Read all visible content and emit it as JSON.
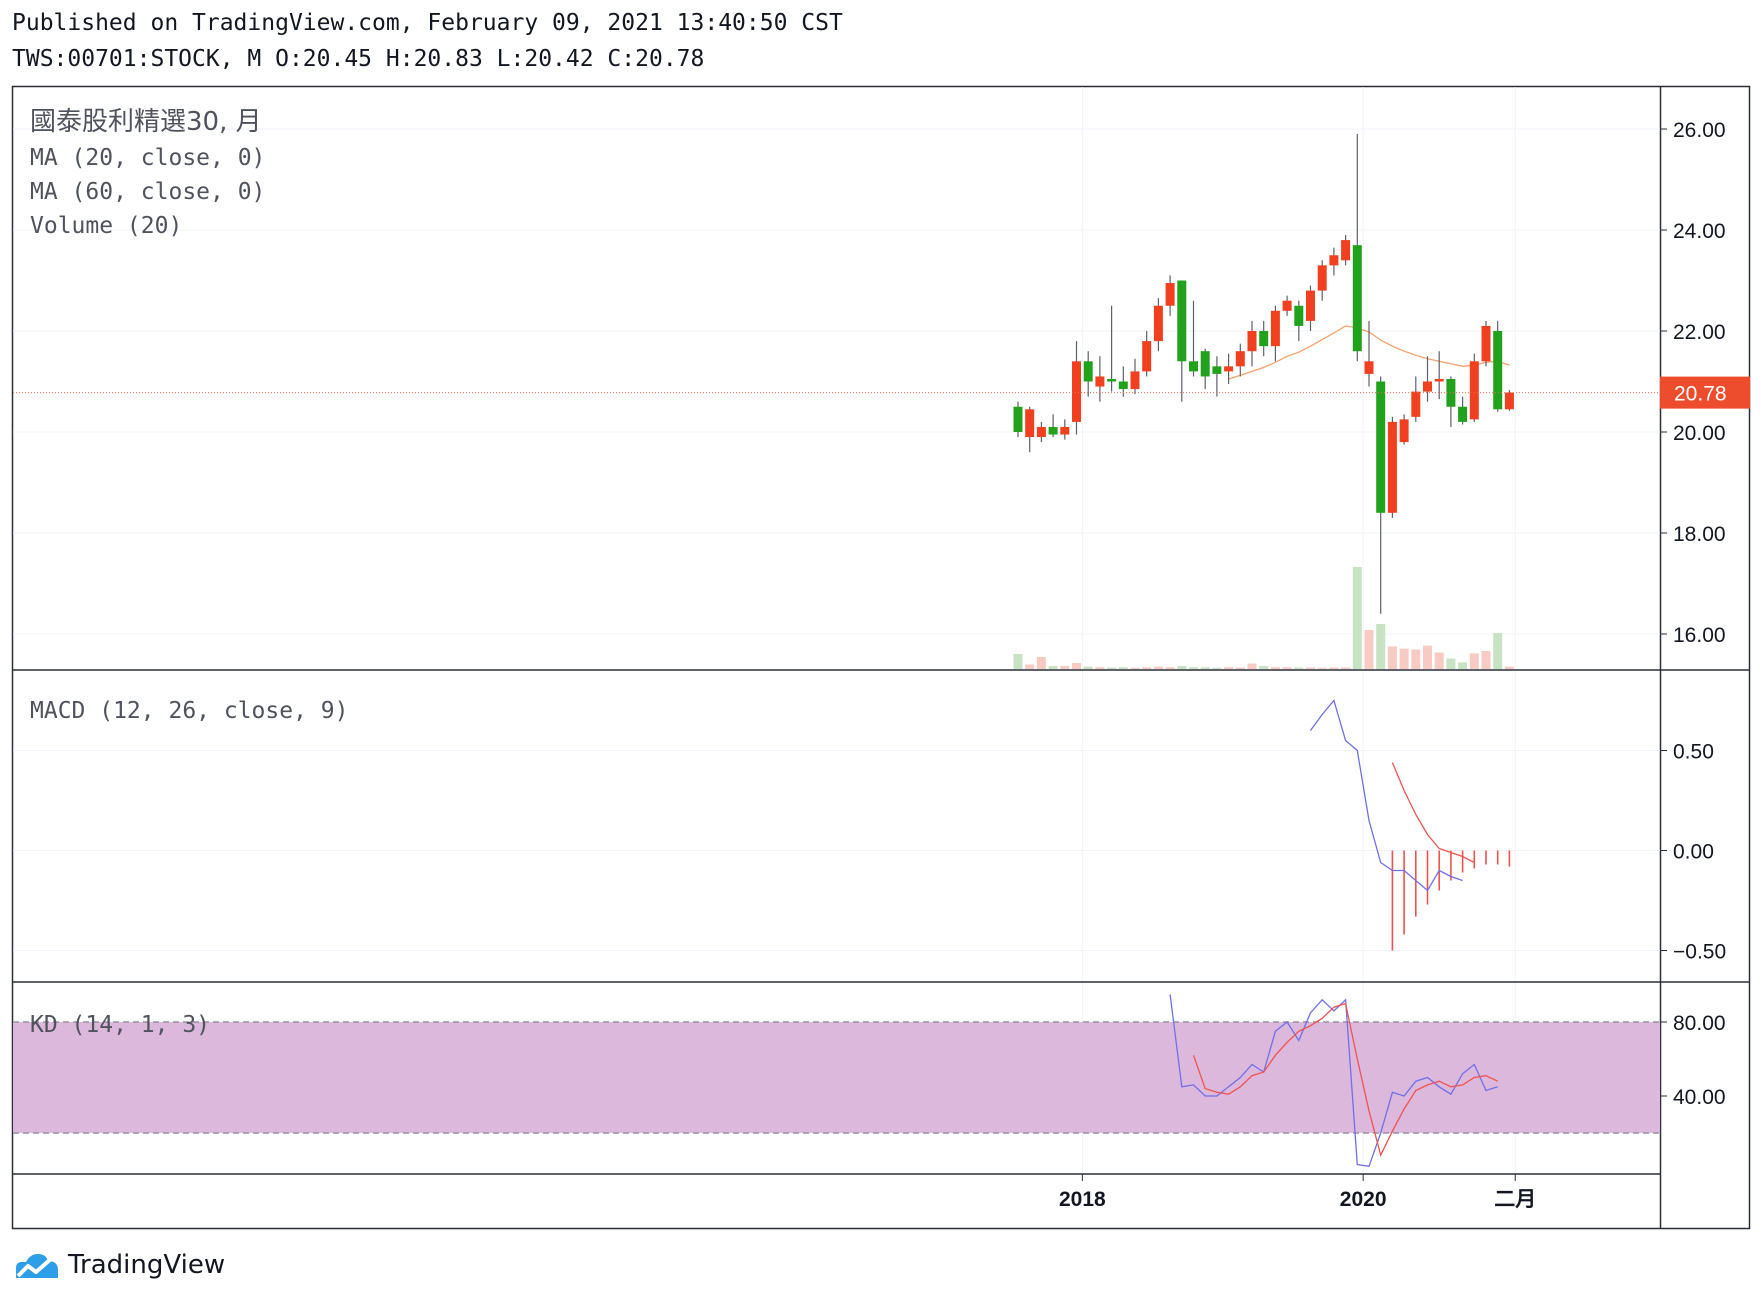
{
  "header": {
    "line1": "Published on TradingView.com, February 09, 2021 13:40:50 CST",
    "line2": "TWS:00701:STOCK, M O:20.45 H:20.83 L:20.42 C:20.78"
  },
  "brand": {
    "name": "TradingView"
  },
  "colors": {
    "up": "#f0401f",
    "down": "#22a11c",
    "ma": "#f4a26d",
    "price_line": "#ef6c4b",
    "macd": "#6f6fe8",
    "signal": "#ef5350",
    "kd_band": "#dcb8dc",
    "vol_up": "#f7cbc3",
    "vol_down": "#c8e3c4"
  },
  "chart_data": {
    "type": "candlestick",
    "symbol": "TWS:00701:STOCK",
    "interval": "M",
    "legend": {
      "title": "國泰股利精選30, 月",
      "ma20": "MA (20, close, 0)",
      "ma60": "MA (60, close, 0)",
      "volume": "Volume (20)",
      "macd": "MACD (12, 26, close, 9)",
      "kd": "KD (14, 1, 3)"
    },
    "last_price": 20.78,
    "last_price_label": "20.78",
    "price_axis": {
      "ticks": [
        "16.00",
        "18.00",
        "20.00",
        "22.00",
        "24.00",
        "26.00"
      ],
      "range": [
        15.5,
        27.0
      ]
    },
    "macd_axis": {
      "ticks": [
        "-0.50",
        "0.00",
        "0.50"
      ],
      "range": [
        -0.62,
        0.78
      ]
    },
    "kd_axis": {
      "ticks": [
        "40.00",
        "80.00"
      ],
      "range": [
        0,
        100
      ],
      "band": [
        20,
        80
      ]
    },
    "x_axis": {
      "ticks": [
        {
          "label": "2018",
          "index": 5.5
        },
        {
          "label": "2020",
          "index": 29.5
        },
        {
          "label": "二月",
          "index": 42.5
        }
      ]
    },
    "candles": [
      {
        "o": 20.5,
        "h": 20.6,
        "l": 19.9,
        "c": 20.0
      },
      {
        "o": 19.9,
        "h": 20.5,
        "l": 19.6,
        "c": 20.45
      },
      {
        "o": 19.9,
        "h": 20.2,
        "l": 19.8,
        "c": 20.1
      },
      {
        "o": 20.1,
        "h": 20.35,
        "l": 19.9,
        "c": 19.95
      },
      {
        "o": 19.95,
        "h": 20.25,
        "l": 19.85,
        "c": 20.1
      },
      {
        "o": 20.2,
        "h": 21.8,
        "l": 19.95,
        "c": 21.4
      },
      {
        "o": 21.4,
        "h": 21.6,
        "l": 20.7,
        "c": 21.0
      },
      {
        "o": 20.9,
        "h": 21.5,
        "l": 20.6,
        "c": 21.1
      },
      {
        "o": 21.05,
        "h": 22.5,
        "l": 20.8,
        "c": 21.0
      },
      {
        "o": 21.0,
        "h": 21.3,
        "l": 20.7,
        "c": 20.85
      },
      {
        "o": 20.85,
        "h": 21.45,
        "l": 20.75,
        "c": 21.2
      },
      {
        "o": 21.2,
        "h": 22.0,
        "l": 21.1,
        "c": 21.8
      },
      {
        "o": 21.8,
        "h": 22.65,
        "l": 21.6,
        "c": 22.5
      },
      {
        "o": 22.5,
        "h": 23.1,
        "l": 22.3,
        "c": 22.95
      },
      {
        "o": 23.0,
        "h": 23.0,
        "l": 20.6,
        "c": 21.4
      },
      {
        "o": 21.4,
        "h": 22.6,
        "l": 21.1,
        "c": 21.2
      },
      {
        "o": 21.6,
        "h": 21.65,
        "l": 20.85,
        "c": 21.1
      },
      {
        "o": 21.3,
        "h": 21.5,
        "l": 20.7,
        "c": 21.15
      },
      {
        "o": 21.2,
        "h": 21.55,
        "l": 20.95,
        "c": 21.3
      },
      {
        "o": 21.3,
        "h": 21.75,
        "l": 21.1,
        "c": 21.6
      },
      {
        "o": 21.6,
        "h": 22.2,
        "l": 21.3,
        "c": 22.0
      },
      {
        "o": 22.0,
        "h": 22.2,
        "l": 21.5,
        "c": 21.7
      },
      {
        "o": 21.7,
        "h": 22.5,
        "l": 21.4,
        "c": 22.4
      },
      {
        "o": 22.4,
        "h": 22.7,
        "l": 22.3,
        "c": 22.6
      },
      {
        "o": 22.5,
        "h": 22.6,
        "l": 21.8,
        "c": 22.1
      },
      {
        "o": 22.2,
        "h": 22.9,
        "l": 22.0,
        "c": 22.8
      },
      {
        "o": 22.8,
        "h": 23.4,
        "l": 22.6,
        "c": 23.3
      },
      {
        "o": 23.3,
        "h": 23.65,
        "l": 23.1,
        "c": 23.5
      },
      {
        "o": 23.4,
        "h": 23.9,
        "l": 23.3,
        "c": 23.8
      },
      {
        "o": 23.7,
        "h": 25.9,
        "l": 21.4,
        "c": 21.6
      },
      {
        "o": 21.15,
        "h": 22.2,
        "l": 20.9,
        "c": 21.4
      },
      {
        "o": 21.0,
        "h": 21.1,
        "l": 16.4,
        "c": 18.4
      },
      {
        "o": 18.4,
        "h": 20.3,
        "l": 18.3,
        "c": 20.2
      },
      {
        "o": 19.8,
        "h": 20.35,
        "l": 19.75,
        "c": 20.25
      },
      {
        "o": 20.3,
        "h": 21.1,
        "l": 20.2,
        "c": 20.8
      },
      {
        "o": 20.8,
        "h": 21.5,
        "l": 20.6,
        "c": 21.0
      },
      {
        "o": 21.0,
        "h": 21.6,
        "l": 20.65,
        "c": 21.05
      },
      {
        "o": 21.05,
        "h": 21.1,
        "l": 20.1,
        "c": 20.5
      },
      {
        "o": 20.5,
        "h": 20.7,
        "l": 20.15,
        "c": 20.2
      },
      {
        "o": 20.25,
        "h": 21.55,
        "l": 20.2,
        "c": 21.4
      },
      {
        "o": 21.4,
        "h": 22.2,
        "l": 21.3,
        "c": 22.1
      },
      {
        "o": 22.0,
        "h": 22.2,
        "l": 20.4,
        "c": 20.45
      },
      {
        "o": 20.45,
        "h": 20.83,
        "l": 20.42,
        "c": 20.78
      }
    ],
    "volume": [
      0.5,
      0.15,
      0.4,
      0.1,
      0.1,
      0.2,
      0.08,
      0.06,
      0.05,
      0.06,
      0.04,
      0.06,
      0.08,
      0.06,
      0.1,
      0.06,
      0.06,
      0.04,
      0.06,
      0.05,
      0.18,
      0.1,
      0.06,
      0.06,
      0.05,
      0.05,
      0.04,
      0.05,
      0.05,
      3.4,
      1.3,
      1.5,
      0.75,
      0.68,
      0.65,
      0.78,
      0.55,
      0.35,
      0.22,
      0.52,
      0.6,
      1.2,
      0.08
    ],
    "ma20": [
      null,
      null,
      null,
      null,
      null,
      null,
      null,
      null,
      null,
      null,
      null,
      null,
      null,
      null,
      null,
      null,
      null,
      null,
      21.05,
      21.12,
      21.2,
      21.28,
      21.38,
      21.5,
      21.58,
      21.7,
      21.83,
      21.96,
      22.1,
      22.06,
      21.98,
      21.82,
      21.7,
      21.6,
      21.52,
      21.45,
      21.4,
      21.35,
      21.3,
      21.32,
      21.38,
      21.4,
      21.32
    ],
    "macd": {
      "macd": [
        null,
        null,
        null,
        null,
        null,
        null,
        null,
        null,
        null,
        null,
        null,
        null,
        null,
        null,
        null,
        null,
        null,
        null,
        null,
        null,
        null,
        null,
        null,
        null,
        null,
        0.6,
        0.68,
        0.75,
        0.55,
        0.5,
        0.15,
        -0.06,
        -0.1,
        -0.1,
        -0.15,
        -0.2,
        -0.1,
        -0.13,
        -0.15,
        null,
        null,
        null,
        null
      ],
      "signal": [
        null,
        null,
        null,
        null,
        null,
        null,
        null,
        null,
        null,
        null,
        null,
        null,
        null,
        null,
        null,
        null,
        null,
        null,
        null,
        null,
        null,
        null,
        null,
        null,
        null,
        null,
        null,
        null,
        null,
        null,
        null,
        null,
        0.44,
        0.3,
        0.18,
        0.08,
        0.01,
        -0.01,
        -0.03,
        -0.06,
        null,
        null,
        null
      ],
      "hist": [
        null,
        null,
        null,
        null,
        null,
        null,
        null,
        null,
        null,
        null,
        null,
        null,
        null,
        null,
        null,
        null,
        null,
        null,
        null,
        null,
        null,
        null,
        null,
        null,
        null,
        null,
        null,
        null,
        null,
        null,
        null,
        null,
        -0.5,
        -0.42,
        -0.33,
        -0.27,
        -0.2,
        -0.15,
        -0.11,
        -0.09,
        -0.07,
        -0.07,
        -0.08
      ]
    },
    "kd": {
      "k": [
        null,
        null,
        null,
        null,
        null,
        null,
        null,
        null,
        null,
        null,
        null,
        null,
        null,
        95,
        45,
        46,
        40,
        40,
        45,
        50,
        57,
        53,
        75,
        80,
        70,
        85,
        92,
        86,
        92,
        3,
        2,
        20,
        42,
        40,
        48,
        50,
        45,
        41,
        52,
        57,
        43,
        45,
        null
      ],
      "d": [
        null,
        null,
        null,
        null,
        null,
        null,
        null,
        null,
        null,
        null,
        null,
        null,
        null,
        null,
        null,
        62,
        44,
        42,
        41,
        45,
        51,
        53,
        62,
        69,
        75,
        78,
        82,
        88,
        90,
        60,
        32,
        8,
        21,
        33,
        43,
        46,
        48,
        45,
        46,
        50,
        51,
        48,
        null
      ]
    }
  }
}
